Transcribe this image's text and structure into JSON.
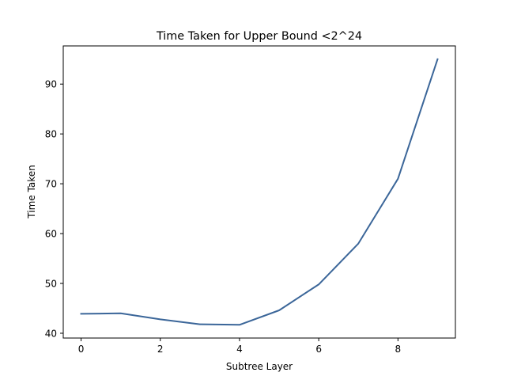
{
  "chart_data": {
    "type": "line",
    "title": "Time Taken for Upper Bound <2^24",
    "xlabel": "Subtree Layer",
    "ylabel": "Time Taken",
    "x": [
      0,
      1,
      2,
      3,
      4,
      5,
      6,
      7,
      8,
      9
    ],
    "series": [
      {
        "values": [
          43.9,
          44.0,
          42.8,
          41.8,
          41.7,
          44.6,
          49.8,
          58.0,
          71.0,
          95.0
        ],
        "color": "#3b6699"
      }
    ],
    "xlim": [
      -0.45,
      9.45
    ],
    "ylim": [
      39.04,
      97.66
    ],
    "xticks": [
      0,
      2,
      4,
      6,
      8
    ],
    "yticks": [
      40,
      50,
      60,
      70,
      80,
      90
    ],
    "grid": false
  }
}
